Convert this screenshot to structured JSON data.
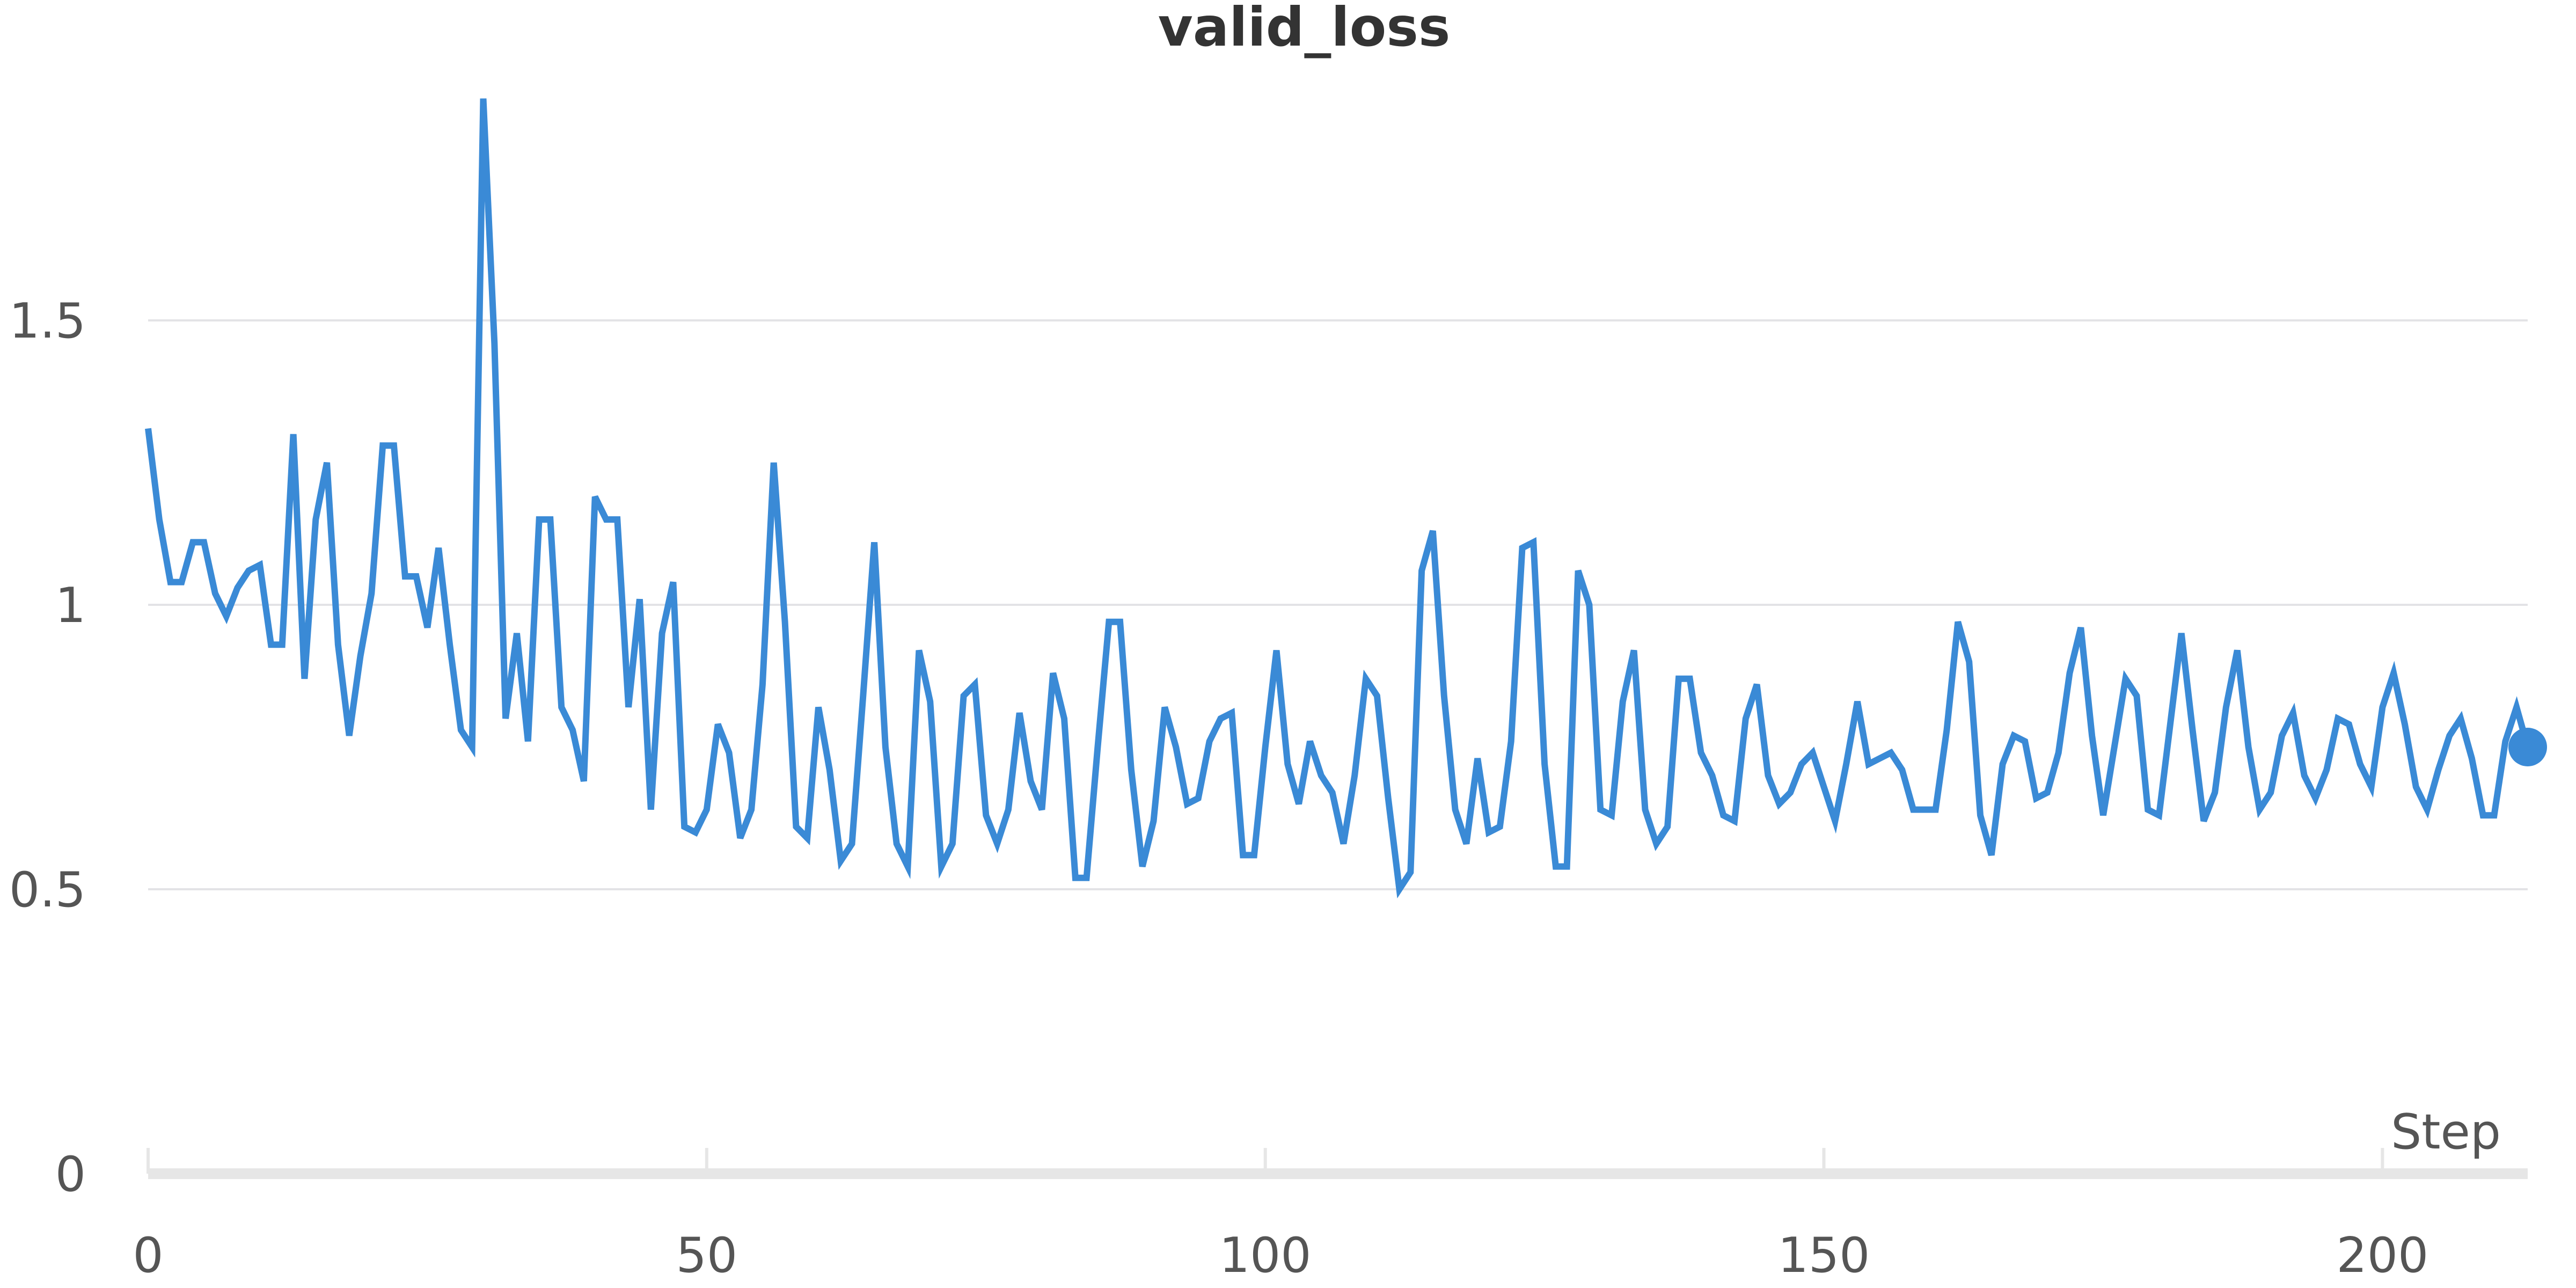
{
  "chart_data": {
    "type": "line",
    "title": "valid_loss",
    "xlabel": "Step",
    "ylabel": "",
    "xlim": [
      0,
      213
    ],
    "ylim": [
      0,
      1.95
    ],
    "xticks": [
      0,
      50,
      100,
      150,
      200
    ],
    "xtick_labels": [
      "0",
      "50",
      "100",
      "150",
      "200"
    ],
    "yticks": [
      0,
      0.5,
      1,
      1.5
    ],
    "ytick_labels": [
      "0",
      "0.5",
      "1",
      "1.5"
    ],
    "grid": true,
    "colors": {
      "line": "#3a8ad6"
    },
    "series": [
      {
        "values": [
          1.31,
          1.15,
          1.04,
          1.04,
          1.11,
          1.11,
          1.02,
          0.98,
          1.03,
          1.06,
          1.07,
          0.93,
          0.93,
          1.3,
          0.87,
          1.15,
          1.25,
          0.93,
          0.77,
          0.91,
          1.02,
          1.28,
          1.28,
          1.05,
          1.05,
          0.96,
          1.1,
          0.93,
          0.78,
          0.75,
          1.89,
          1.46,
          0.8,
          0.95,
          0.76,
          1.15,
          1.15,
          0.82,
          0.78,
          0.69,
          1.19,
          1.15,
          1.15,
          0.82,
          1.01,
          0.64,
          0.95,
          1.04,
          0.61,
          0.6,
          0.64,
          0.79,
          0.74,
          0.59,
          0.64,
          0.86,
          1.25,
          0.97,
          0.61,
          0.59,
          0.82,
          0.71,
          0.55,
          0.58,
          0.84,
          1.11,
          0.75,
          0.58,
          0.54,
          0.92,
          0.83,
          0.54,
          0.58,
          0.84,
          0.86,
          0.63,
          0.58,
          0.64,
          0.81,
          0.69,
          0.64,
          0.88,
          0.8,
          0.52,
          0.52,
          0.75,
          0.97,
          0.97,
          0.71,
          0.54,
          0.62,
          0.82,
          0.75,
          0.65,
          0.66,
          0.76,
          0.8,
          0.81,
          0.56,
          0.56,
          0.75,
          0.92,
          0.72,
          0.65,
          0.76,
          0.7,
          0.67,
          0.58,
          0.7,
          0.87,
          0.84,
          0.66,
          0.5,
          0.53,
          1.06,
          1.13,
          0.84,
          0.64,
          0.58,
          0.73,
          0.6,
          0.61,
          0.76,
          1.1,
          1.11,
          0.72,
          0.54,
          0.54,
          1.06,
          1.0,
          0.64,
          0.63,
          0.83,
          0.92,
          0.64,
          0.58,
          0.61,
          0.87,
          0.87,
          0.74,
          0.7,
          0.63,
          0.62,
          0.8,
          0.86,
          0.7,
          0.65,
          0.67,
          0.72,
          0.74,
          0.68,
          0.62,
          0.72,
          0.83,
          0.72,
          0.73,
          0.74,
          0.71,
          0.64,
          0.64,
          0.64,
          0.78,
          0.97,
          0.9,
          0.63,
          0.56,
          0.72,
          0.77,
          0.76,
          0.66,
          0.67,
          0.74,
          0.88,
          0.96,
          0.77,
          0.63,
          0.75,
          0.87,
          0.84,
          0.64,
          0.63,
          0.79,
          0.95,
          0.78,
          0.62,
          0.67,
          0.82,
          0.92,
          0.75,
          0.64,
          0.67,
          0.77,
          0.81,
          0.7,
          0.66,
          0.71,
          0.8,
          0.79,
          0.72,
          0.68,
          0.82,
          0.88,
          0.79,
          0.68,
          0.64,
          0.71,
          0.77,
          0.8,
          0.73,
          0.63,
          0.63,
          0.76,
          0.82,
          0.75
        ]
      }
    ]
  }
}
